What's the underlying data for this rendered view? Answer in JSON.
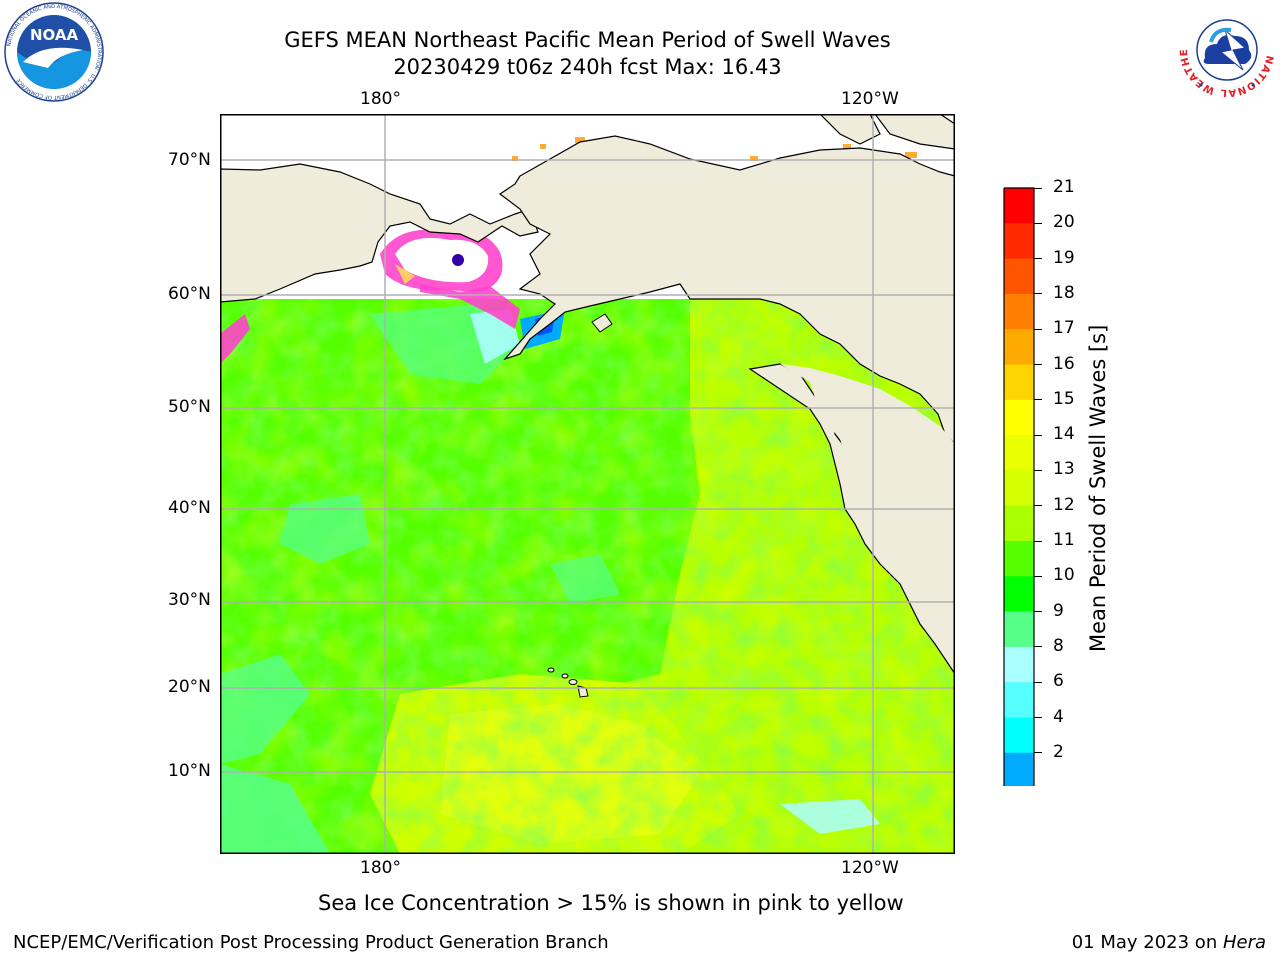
{
  "header": {
    "title_line1": "GEFS MEAN Northeast Pacific Mean Period of Swell Waves",
    "title_line2": "20230429 t06z 240h fcst   Max: 16.43"
  },
  "logos": {
    "left": {
      "name": "noaa-logo",
      "text": "NOAA",
      "ring": "NATIONAL OCEANIC AND ATMOSPHERIC ADMINISTRATION · U.S. DEPARTMENT OF COMMERCE"
    },
    "right": {
      "name": "nws-logo",
      "ring": "NATIONAL WEATHER SERVICE"
    }
  },
  "map": {
    "lon_ticks_top": [
      "180°",
      "120°W"
    ],
    "lon_ticks_bottom": [
      "180°",
      "120°W"
    ],
    "lat_ticks": [
      "70°N",
      "60°N",
      "50°N",
      "40°N",
      "30°N",
      "20°N",
      "10°N"
    ],
    "land_color": "#efecdb",
    "ice_note": "Sea Ice Concentration > 15% is shown in pink to yellow"
  },
  "colorbar": {
    "title": "Mean Period of Swell Waves [s]",
    "labels": [
      "21",
      "20",
      "19",
      "18",
      "17",
      "16",
      "15",
      "14",
      "13",
      "12",
      "11",
      "10",
      "9",
      "8",
      "6",
      "4",
      "2"
    ],
    "colors": [
      "#ff0000",
      "#ff2a00",
      "#ff5500",
      "#ff7f00",
      "#ffaa00",
      "#ffd400",
      "#ffff00",
      "#eaff00",
      "#d4ff00",
      "#aaff00",
      "#55ff00",
      "#00ff00",
      "#55ff88",
      "#aaffff",
      "#55ffff",
      "#00ffff",
      "#00aaff",
      "#0055ff"
    ],
    "extend_color": "#0000ff"
  },
  "footer": {
    "left": "NCEP/EMC/Verification Post Processing Product Generation Branch",
    "right_date": "01 May 2023 on ",
    "right_host": "Hera"
  }
}
